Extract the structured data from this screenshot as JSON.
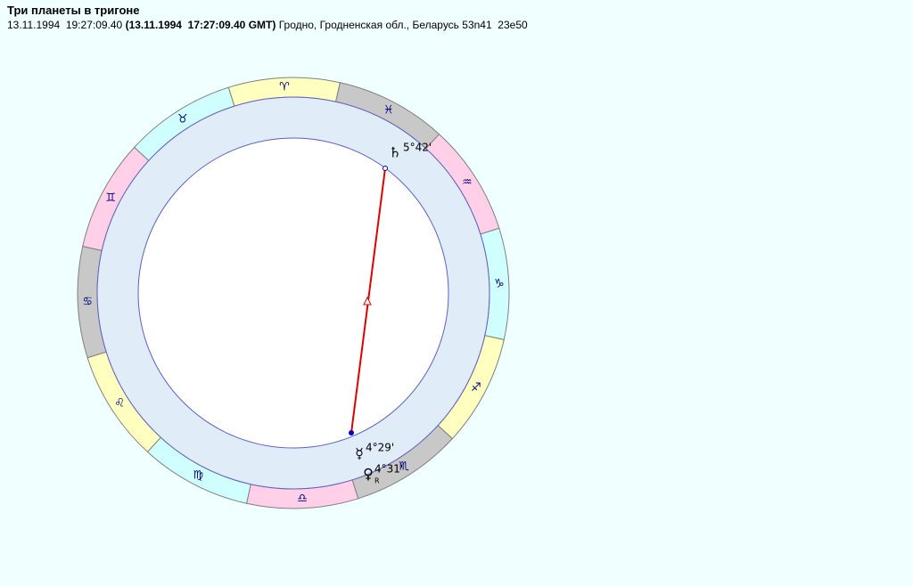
{
  "header": {
    "title": "Три планеты в тригоне",
    "local_time": "13.11.1994  19:27:09.40",
    "gmt_time": "(13.11.1994  17:27:09.40 GMT)",
    "place": "Гродно, Гродненская обл., Беларусь 53n41  23e50"
  },
  "zodiac": [
    "♈",
    "♉",
    "♊",
    "♋",
    "♌",
    "♍",
    "♎",
    "♏",
    "♐",
    "♑",
    "♒",
    "♓"
  ],
  "planets": [
    {
      "glyph": "♄",
      "label": "5°42'"
    },
    {
      "glyph": "☿",
      "label": "4°29'"
    },
    {
      "glyph": "♀",
      "label": "4°31'",
      "retro": "R"
    }
  ]
}
